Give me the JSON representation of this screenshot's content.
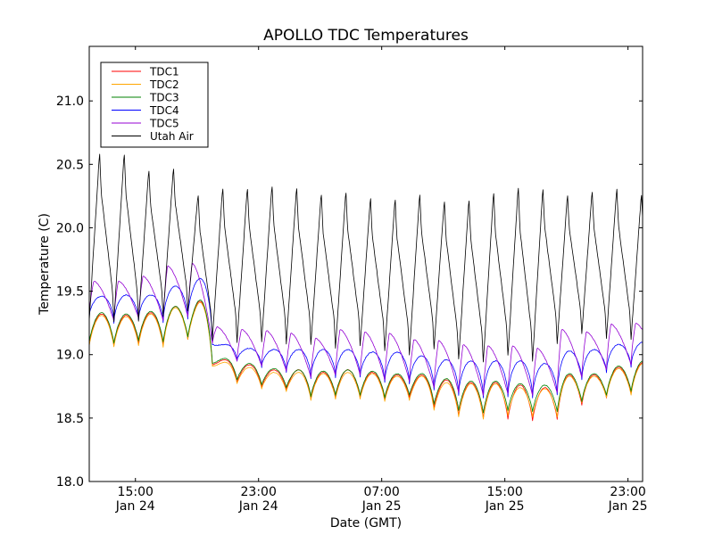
{
  "chart_data": {
    "type": "line",
    "title": "APOLLO TDC Temperatures",
    "xlabel": "Date (GMT)",
    "ylabel": "Temperature (C)",
    "x_unit": "hours since 00:00 Jan 24 (GMT)",
    "xlim": [
      12.0,
      47.95
    ],
    "ylim": [
      18.0,
      21.43
    ],
    "grid": false,
    "legend_position": "top-left",
    "yticks": [
      {
        "value": 18.0,
        "label": "18.0"
      },
      {
        "value": 18.5,
        "label": "18.5"
      },
      {
        "value": 19.0,
        "label": "19.0"
      },
      {
        "value": 19.5,
        "label": "19.5"
      },
      {
        "value": 20.0,
        "label": "20.0"
      },
      {
        "value": 20.5,
        "label": "20.5"
      },
      {
        "value": 21.0,
        "label": "21.0"
      }
    ],
    "xticks": [
      {
        "value": 15,
        "time": "15:00",
        "date": "Jan 24"
      },
      {
        "value": 23,
        "time": "23:00",
        "date": "Jan 24"
      },
      {
        "value": 31,
        "time": "07:00",
        "date": "Jan 25"
      },
      {
        "value": 39,
        "time": "15:00",
        "date": "Jan 25"
      },
      {
        "value": 47,
        "time": "23:00",
        "date": "Jan 25"
      }
    ],
    "cycle_period_hours": 1.6,
    "cycle_start_hours": 12.0,
    "series": [
      {
        "name": "TDC1",
        "color": "#ff0000",
        "shape": "smooth",
        "cycle_min": [
          19.08,
          19.07,
          19.09,
          19.08,
          19.12,
          18.92,
          18.78,
          18.74,
          18.72,
          18.65,
          18.66,
          18.66,
          18.64,
          18.66,
          18.58,
          18.52,
          18.5,
          18.49,
          18.48,
          18.49,
          18.6,
          18.66,
          18.7,
          18.74
        ],
        "cycle_max": [
          19.32,
          19.31,
          19.33,
          19.38,
          19.42,
          18.96,
          18.92,
          18.88,
          18.88,
          18.86,
          18.88,
          18.86,
          18.84,
          18.84,
          18.8,
          18.78,
          18.78,
          18.76,
          18.74,
          18.84,
          18.84,
          18.9,
          18.94,
          18.96
        ]
      },
      {
        "name": "TDC2",
        "color": "#ffa500",
        "shape": "smooth",
        "cycle_min": [
          19.07,
          19.06,
          19.07,
          19.06,
          19.12,
          18.91,
          18.77,
          18.73,
          18.71,
          18.64,
          18.65,
          18.65,
          18.63,
          18.64,
          18.56,
          18.51,
          18.49,
          18.52,
          18.51,
          18.51,
          18.62,
          18.66,
          18.68,
          18.73
        ],
        "cycle_max": [
          19.31,
          19.3,
          19.32,
          19.37,
          19.41,
          18.94,
          18.9,
          18.86,
          18.86,
          18.85,
          18.86,
          18.85,
          18.83,
          18.83,
          18.78,
          18.77,
          18.77,
          18.74,
          18.73,
          18.83,
          18.83,
          18.89,
          18.93,
          18.95
        ]
      },
      {
        "name": "TDC3",
        "color": "#008000",
        "shape": "smooth",
        "cycle_min": [
          19.1,
          19.09,
          19.11,
          19.1,
          19.14,
          18.93,
          18.8,
          18.76,
          18.74,
          18.67,
          18.68,
          18.68,
          18.66,
          18.68,
          18.61,
          18.56,
          18.54,
          18.56,
          18.55,
          18.55,
          18.63,
          18.68,
          18.71,
          18.76
        ],
        "cycle_max": [
          19.33,
          19.32,
          19.34,
          19.38,
          19.43,
          18.97,
          18.93,
          18.89,
          18.88,
          18.87,
          18.88,
          18.87,
          18.85,
          18.85,
          18.81,
          18.79,
          18.79,
          18.77,
          18.76,
          18.85,
          18.85,
          18.91,
          18.95,
          18.97
        ]
      },
      {
        "name": "TDC4",
        "color": "#0000ff",
        "shape": "smooth-plateau",
        "cycle_min": [
          19.3,
          19.25,
          19.27,
          19.25,
          19.28,
          19.08,
          18.95,
          18.9,
          18.86,
          18.81,
          18.82,
          18.82,
          18.78,
          18.77,
          18.72,
          18.68,
          18.66,
          18.67,
          18.66,
          18.68,
          18.8,
          18.86,
          18.9,
          18.92
        ],
        "cycle_max": [
          19.46,
          19.47,
          19.47,
          19.54,
          19.6,
          19.08,
          19.05,
          19.04,
          19.04,
          19.04,
          19.04,
          19.02,
          19.02,
          18.99,
          18.96,
          18.95,
          18.95,
          18.95,
          18.93,
          19.03,
          19.04,
          19.08,
          19.1,
          19.12
        ]
      },
      {
        "name": "TDC5",
        "color": "#9400d3",
        "shape": "sawtooth",
        "cycle_min": [
          19.32,
          19.27,
          19.29,
          19.27,
          19.3,
          19.09,
          18.95,
          18.91,
          18.87,
          18.82,
          18.84,
          18.84,
          18.8,
          18.79,
          18.74,
          18.7,
          18.68,
          18.69,
          18.68,
          18.7,
          18.82,
          18.88,
          18.92,
          18.95
        ],
        "cycle_max": [
          19.58,
          19.58,
          19.62,
          19.7,
          19.72,
          19.22,
          19.2,
          19.19,
          19.17,
          19.13,
          19.2,
          19.18,
          19.17,
          19.12,
          19.11,
          19.08,
          19.07,
          19.07,
          19.05,
          19.2,
          19.18,
          19.24,
          19.25,
          19.25
        ]
      },
      {
        "name": "Utah Air",
        "color": "#000000",
        "shape": "sawtooth",
        "cycle_min": [
          19.27,
          19.26,
          19.26,
          19.3,
          19.34,
          19.12,
          19.1,
          19.1,
          19.08,
          19.08,
          19.05,
          19.07,
          19.03,
          19.0,
          19.05,
          18.96,
          18.94,
          18.99,
          18.95,
          19.09,
          19.16,
          19.13,
          19.12,
          19.17
        ],
        "cycle_max": [
          20.6,
          20.6,
          20.47,
          20.48,
          20.27,
          20.33,
          20.33,
          20.35,
          20.33,
          20.28,
          20.3,
          20.25,
          20.24,
          20.28,
          20.23,
          20.24,
          20.29,
          20.33,
          20.32,
          20.27,
          20.3,
          20.32,
          20.27,
          20.05
        ]
      }
    ]
  }
}
